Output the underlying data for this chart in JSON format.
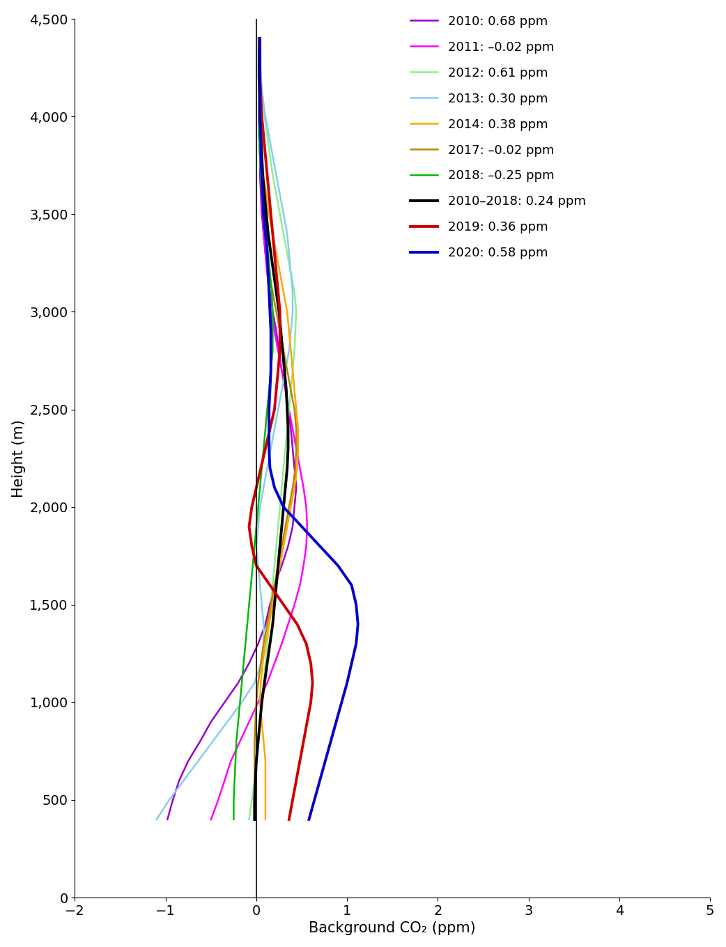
{
  "xlabel": "Background CO₂ (ppm)",
  "ylabel": "Height (m)",
  "xlim": [
    -2,
    5
  ],
  "ylim": [
    0,
    4500
  ],
  "xticks": [
    -2,
    -1,
    0,
    1,
    2,
    3,
    4,
    5
  ],
  "yticks": [
    0,
    500,
    1000,
    1500,
    2000,
    2500,
    3000,
    3500,
    4000,
    4500
  ],
  "series": [
    {
      "label": "2010: 0.68 ppm",
      "color": "#9900CC",
      "linewidth": 1.8,
      "heights": [
        400,
        500,
        600,
        700,
        800,
        900,
        1000,
        1100,
        1200,
        1300,
        1400,
        1500,
        1600,
        1700,
        1800,
        1900,
        2000,
        2100,
        2200,
        2300,
        2400,
        2500,
        2600,
        2700,
        2800,
        2900,
        3000,
        3100,
        3200,
        3300,
        3400,
        3500,
        3600,
        3700,
        3800,
        3900,
        4000,
        4100,
        4200,
        4300,
        4400
      ],
      "values": [
        -0.98,
        -0.92,
        -0.85,
        -0.75,
        -0.62,
        -0.5,
        -0.35,
        -0.2,
        -0.08,
        0.02,
        0.1,
        0.15,
        0.2,
        0.28,
        0.35,
        0.4,
        0.42,
        0.44,
        0.42,
        0.4,
        0.38,
        0.35,
        0.32,
        0.28,
        0.25,
        0.22,
        0.18,
        0.15,
        0.12,
        0.1,
        0.08,
        0.06,
        0.05,
        0.04,
        0.04,
        0.03,
        0.03,
        0.03,
        0.03,
        0.03,
        0.03
      ]
    },
    {
      "label": "2011: –0.02 ppm",
      "color": "#FF00FF",
      "linewidth": 1.8,
      "heights": [
        400,
        500,
        600,
        700,
        800,
        900,
        1000,
        1100,
        1200,
        1300,
        1400,
        1500,
        1600,
        1700,
        1800,
        1900,
        2000,
        2100,
        2200,
        2300,
        2400,
        2500,
        2600,
        2700,
        2800,
        2900,
        3000,
        3100,
        3200,
        3300,
        3400,
        3500,
        3600,
        3700,
        3800,
        3900,
        4000,
        4100,
        4200,
        4300,
        4400
      ],
      "values": [
        -0.5,
        -0.42,
        -0.35,
        -0.28,
        -0.18,
        -0.08,
        0.02,
        0.12,
        0.2,
        0.28,
        0.35,
        0.42,
        0.48,
        0.52,
        0.55,
        0.56,
        0.55,
        0.52,
        0.48,
        0.44,
        0.4,
        0.36,
        0.32,
        0.28,
        0.24,
        0.2,
        0.16,
        0.14,
        0.12,
        0.1,
        0.08,
        0.07,
        0.06,
        0.05,
        0.04,
        0.04,
        0.03,
        0.03,
        0.03,
        0.03,
        0.03
      ]
    },
    {
      "label": "2012: 0.61 ppm",
      "color": "#90EE90",
      "linewidth": 1.8,
      "heights": [
        400,
        500,
        600,
        700,
        800,
        900,
        1000,
        1100,
        1200,
        1300,
        1400,
        1500,
        1600,
        1700,
        1800,
        1900,
        2000,
        2100,
        2200,
        2300,
        2400,
        2500,
        2600,
        2700,
        2800,
        2900,
        3000,
        3100,
        3200,
        3300,
        3400,
        3500,
        3600,
        3700,
        3800,
        3900,
        4000,
        4100,
        4200,
        4300,
        4400
      ],
      "values": [
        -0.08,
        -0.05,
        -0.02,
        0.0,
        0.02,
        0.04,
        0.06,
        0.08,
        0.1,
        0.12,
        0.14,
        0.16,
        0.18,
        0.2,
        0.22,
        0.24,
        0.26,
        0.28,
        0.3,
        0.32,
        0.34,
        0.36,
        0.38,
        0.4,
        0.42,
        0.43,
        0.44,
        0.42,
        0.38,
        0.34,
        0.3,
        0.26,
        0.22,
        0.18,
        0.15,
        0.12,
        0.09,
        0.07,
        0.05,
        0.04,
        0.03
      ]
    },
    {
      "label": "2013: 0.30 ppm",
      "color": "#87CEEB",
      "linewidth": 1.8,
      "heights": [
        400,
        500,
        600,
        700,
        800,
        900,
        1000,
        1100,
        1200,
        1300,
        1400,
        1500,
        1600,
        1700,
        1800,
        1900,
        2000,
        2100,
        2200,
        2300,
        2400,
        2500,
        2600,
        2700,
        2800,
        2900,
        3000,
        3100,
        3200,
        3300,
        3400,
        3500,
        3600,
        3700,
        3800,
        3900,
        4000,
        4100,
        4200,
        4300,
        4400
      ],
      "values": [
        -1.1,
        -0.96,
        -0.8,
        -0.64,
        -0.48,
        -0.32,
        -0.16,
        -0.02,
        0.05,
        0.08,
        0.08,
        0.06,
        0.04,
        0.02,
        0.0,
        0.02,
        0.04,
        0.08,
        0.12,
        0.16,
        0.2,
        0.24,
        0.28,
        0.32,
        0.36,
        0.38,
        0.4,
        0.4,
        0.38,
        0.36,
        0.34,
        0.3,
        0.26,
        0.22,
        0.18,
        0.14,
        0.1,
        0.07,
        0.05,
        0.04,
        0.03
      ]
    },
    {
      "label": "2014: 0.38 ppm",
      "color": "#FFA500",
      "linewidth": 1.8,
      "heights": [
        400,
        500,
        600,
        700,
        800,
        900,
        1000,
        1100,
        1200,
        1300,
        1400,
        1500,
        1600,
        1700,
        1800,
        1900,
        2000,
        2100,
        2200,
        2300,
        2400,
        2500,
        2600,
        2700,
        2800,
        2900,
        3000,
        3100,
        3200,
        3300,
        3400,
        3500,
        3600,
        3700,
        3800,
        3900,
        4000,
        4100,
        4200,
        4300,
        4400
      ],
      "values": [
        0.1,
        0.1,
        0.1,
        0.1,
        0.08,
        0.06,
        0.04,
        0.05,
        0.07,
        0.1,
        0.14,
        0.18,
        0.22,
        0.26,
        0.3,
        0.34,
        0.38,
        0.42,
        0.45,
        0.46,
        0.46,
        0.44,
        0.42,
        0.4,
        0.38,
        0.36,
        0.34,
        0.3,
        0.26,
        0.22,
        0.18,
        0.14,
        0.11,
        0.08,
        0.06,
        0.05,
        0.04,
        0.04,
        0.03,
        0.03,
        0.03
      ]
    },
    {
      "label": "2017: –0.02 ppm",
      "color": "#B8860B",
      "linewidth": 1.8,
      "heights": [
        500,
        600,
        700,
        800,
        900,
        1000,
        1100,
        1200,
        1300,
        1400,
        1500,
        1600,
        1700,
        1800,
        1900,
        2000,
        2100,
        2200,
        2300,
        2400,
        2500,
        2600,
        2700,
        2800,
        2900,
        3000,
        3100,
        3200,
        3300,
        3400,
        3500,
        3600,
        3700,
        3800,
        3900,
        4000,
        4100,
        4200,
        4300,
        4400
      ],
      "values": [
        -0.02,
        -0.02,
        -0.02,
        -0.02,
        -0.01,
        0.0,
        0.02,
        0.05,
        0.08,
        0.12,
        0.16,
        0.2,
        0.24,
        0.28,
        0.32,
        0.36,
        0.4,
        0.43,
        0.44,
        0.44,
        0.42,
        0.38,
        0.34,
        0.3,
        0.26,
        0.22,
        0.18,
        0.14,
        0.12,
        0.1,
        0.08,
        0.06,
        0.05,
        0.04,
        0.04,
        0.03,
        0.03,
        0.03,
        0.03,
        0.03
      ]
    },
    {
      "label": "2018: –0.25 ppm",
      "color": "#00BB00",
      "linewidth": 1.8,
      "heights": [
        400,
        500,
        600,
        700,
        800,
        900,
        1000,
        1100,
        1200,
        1300,
        1400,
        1500,
        1600,
        1700,
        1800,
        1900,
        2000,
        2100,
        2200,
        2300,
        2400,
        2500,
        2600,
        2700,
        2800,
        2900,
        3000,
        3100,
        3200,
        3300,
        3400,
        3500,
        3600,
        3700,
        3800,
        3900,
        4000,
        4100,
        4200,
        4300,
        4400
      ],
      "values": [
        -0.25,
        -0.25,
        -0.24,
        -0.23,
        -0.22,
        -0.2,
        -0.18,
        -0.16,
        -0.14,
        -0.12,
        -0.1,
        -0.08,
        -0.06,
        -0.04,
        -0.02,
        0.0,
        0.02,
        0.04,
        0.06,
        0.08,
        0.1,
        0.12,
        0.14,
        0.16,
        0.18,
        0.18,
        0.18,
        0.17,
        0.15,
        0.13,
        0.11,
        0.09,
        0.07,
        0.05,
        0.04,
        0.03,
        0.03,
        0.03,
        0.03,
        0.03,
        0.03
      ]
    },
    {
      "label": "2010–2018: 0.24 ppm",
      "color": "#000000",
      "linewidth": 2.8,
      "heights": [
        400,
        500,
        600,
        700,
        800,
        900,
        1000,
        1100,
        1200,
        1300,
        1400,
        1500,
        1600,
        1700,
        1800,
        1900,
        2000,
        2100,
        2200,
        2300,
        2400,
        2500,
        2600,
        2700,
        2800,
        2900,
        3000,
        3100,
        3200,
        3300,
        3400,
        3500,
        3600,
        3700,
        3800,
        3900,
        4000,
        4100,
        4200,
        4300,
        4400
      ],
      "values": [
        -0.02,
        -0.02,
        -0.01,
        0.0,
        0.02,
        0.04,
        0.06,
        0.09,
        0.12,
        0.15,
        0.18,
        0.2,
        0.22,
        0.24,
        0.26,
        0.28,
        0.3,
        0.32,
        0.34,
        0.35,
        0.35,
        0.34,
        0.33,
        0.31,
        0.29,
        0.27,
        0.25,
        0.22,
        0.19,
        0.16,
        0.13,
        0.11,
        0.09,
        0.07,
        0.06,
        0.05,
        0.04,
        0.04,
        0.03,
        0.03,
        0.03
      ]
    },
    {
      "label": "2019: 0.36 ppm",
      "color": "#CC0000",
      "linewidth": 2.8,
      "heights": [
        400,
        500,
        600,
        700,
        800,
        900,
        1000,
        1100,
        1200,
        1300,
        1400,
        1500,
        1600,
        1700,
        1800,
        1900,
        2000,
        2100,
        2200,
        2300,
        2400,
        2500,
        2600,
        2700,
        2800,
        2900,
        3000,
        3100,
        3200,
        3300,
        3400,
        3500,
        3600,
        3700,
        3800,
        3900,
        4000,
        4100,
        4200,
        4300,
        4400
      ],
      "values": [
        0.36,
        0.4,
        0.44,
        0.48,
        0.52,
        0.56,
        0.6,
        0.62,
        0.6,
        0.55,
        0.45,
        0.3,
        0.15,
        0.0,
        -0.05,
        -0.08,
        -0.05,
        0.0,
        0.05,
        0.1,
        0.15,
        0.2,
        0.22,
        0.24,
        0.26,
        0.26,
        0.26,
        0.24,
        0.22,
        0.2,
        0.18,
        0.16,
        0.14,
        0.12,
        0.1,
        0.08,
        0.06,
        0.05,
        0.04,
        0.04,
        0.03
      ]
    },
    {
      "label": "2020: 0.58 ppm",
      "color": "#0000CC",
      "linewidth": 2.8,
      "heights": [
        400,
        500,
        600,
        700,
        800,
        900,
        1000,
        1100,
        1200,
        1300,
        1400,
        1500,
        1600,
        1700,
        1800,
        1900,
        2000,
        2100,
        2200,
        2300,
        2400,
        2500,
        2600,
        2700,
        2800,
        2900,
        3000,
        3100,
        3200,
        3300,
        3400,
        3500,
        3600,
        3700,
        3800,
        3900,
        4000,
        4100,
        4200,
        4300,
        4400
      ],
      "values": [
        0.58,
        0.64,
        0.7,
        0.76,
        0.82,
        0.88,
        0.94,
        1.0,
        1.05,
        1.1,
        1.12,
        1.1,
        1.05,
        0.9,
        0.7,
        0.5,
        0.3,
        0.2,
        0.15,
        0.14,
        0.14,
        0.14,
        0.15,
        0.16,
        0.16,
        0.16,
        0.15,
        0.14,
        0.13,
        0.12,
        0.1,
        0.08,
        0.07,
        0.06,
        0.05,
        0.05,
        0.04,
        0.04,
        0.04,
        0.04,
        0.04
      ]
    }
  ]
}
